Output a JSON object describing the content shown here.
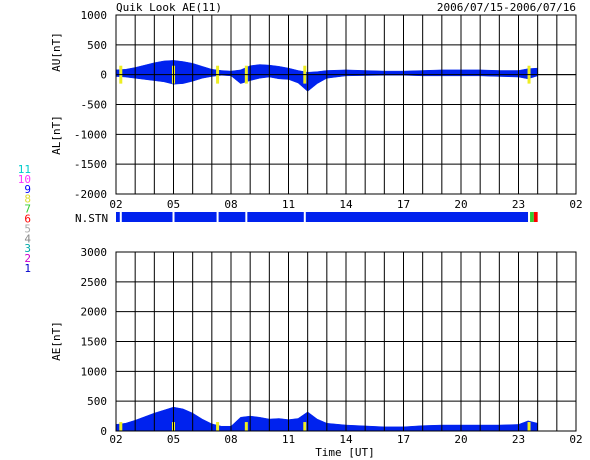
{
  "header": {
    "title": "Quik Look AE(11)",
    "date_range": "2006/07/15-2006/07/16"
  },
  "station_legend": {
    "labels": [
      "11",
      "10",
      "9",
      "8",
      "7",
      "6",
      "5",
      "4",
      "3",
      "2",
      "1"
    ],
    "colors": [
      "#00cccc",
      "#ff33ff",
      "#0000ff",
      "#dddd33",
      "#33cc33",
      "#ff0000",
      "#aaaaaa",
      "#888888",
      "#00aaaa",
      "#cc00cc",
      "#0000cc"
    ]
  },
  "colors": {
    "fill": "#0022ee",
    "marker": "#eeee22",
    "green": "#33cc33",
    "red": "#ff0000"
  },
  "x_axis": {
    "ticks": [
      "02",
      "05",
      "08",
      "11",
      "14",
      "17",
      "20",
      "23",
      "02"
    ],
    "tick_hours": [
      2,
      5,
      8,
      11,
      14,
      17,
      20,
      23,
      26
    ],
    "range": [
      2,
      26
    ],
    "label": "Time [UT]"
  },
  "nstn": {
    "label": "N.STN",
    "segments": [
      {
        "from": 2.0,
        "to": 23.5,
        "color": "#0022ee"
      },
      {
        "from": 23.5,
        "to": 23.8,
        "color": "#33cc33"
      },
      {
        "from": 23.8,
        "to": 24.0,
        "color": "#ff0000"
      }
    ]
  },
  "chart_data": [
    {
      "type": "area",
      "name": "AU/AL",
      "ylabel_top": "AU[nT]",
      "ylabel_bottom": "AL[nT]",
      "ylim": [
        -2000,
        1000
      ],
      "yticks": [
        1000,
        500,
        0,
        -500,
        -1000,
        -1500,
        -2000
      ],
      "grid": true,
      "x": [
        2.0,
        2.5,
        3.0,
        3.5,
        4.0,
        4.5,
        5.0,
        5.5,
        6.0,
        6.5,
        7.0,
        7.5,
        8.0,
        8.5,
        9.0,
        9.5,
        10.0,
        10.5,
        11.0,
        11.5,
        12.0,
        12.5,
        13.0,
        14.0,
        15.0,
        16.0,
        17.0,
        18.0,
        19.0,
        20.0,
        21.0,
        22.0,
        23.0,
        23.5,
        24.0
      ],
      "au": [
        80,
        90,
        120,
        160,
        200,
        230,
        240,
        220,
        190,
        140,
        90,
        70,
        60,
        80,
        150,
        170,
        160,
        140,
        110,
        70,
        40,
        50,
        70,
        80,
        70,
        60,
        60,
        70,
        80,
        80,
        80,
        70,
        70,
        100,
        110
      ],
      "al": [
        -30,
        -40,
        -60,
        -80,
        -100,
        -120,
        -160,
        -150,
        -110,
        -60,
        -30,
        -10,
        -20,
        -150,
        -100,
        -60,
        -40,
        -70,
        -80,
        -140,
        -280,
        -150,
        -60,
        -20,
        -15,
        -10,
        -10,
        -20,
        -20,
        -20,
        -20,
        -30,
        -40,
        -70,
        -20
      ]
    },
    {
      "type": "area",
      "name": "AE",
      "ylabel": "AE[nT]",
      "ylim": [
        0,
        3000
      ],
      "yticks": [
        3000,
        2500,
        2000,
        1500,
        1000,
        500,
        0
      ],
      "grid": true,
      "x": [
        2.0,
        2.5,
        3.0,
        3.5,
        4.0,
        4.5,
        5.0,
        5.5,
        6.0,
        6.5,
        7.0,
        7.5,
        8.0,
        8.5,
        9.0,
        9.5,
        10.0,
        10.5,
        11.0,
        11.5,
        12.0,
        12.5,
        13.0,
        14.0,
        15.0,
        16.0,
        17.0,
        18.0,
        19.0,
        20.0,
        21.0,
        22.0,
        23.0,
        23.5,
        24.0
      ],
      "values": [
        110,
        130,
        180,
        240,
        300,
        350,
        400,
        370,
        300,
        200,
        120,
        80,
        80,
        230,
        250,
        230,
        200,
        210,
        190,
        210,
        320,
        200,
        130,
        100,
        85,
        70,
        70,
        90,
        100,
        100,
        100,
        100,
        110,
        170,
        130
      ]
    }
  ],
  "markers": [
    2.25,
    5.0,
    7.3,
    8.8,
    11.85,
    23.55
  ]
}
